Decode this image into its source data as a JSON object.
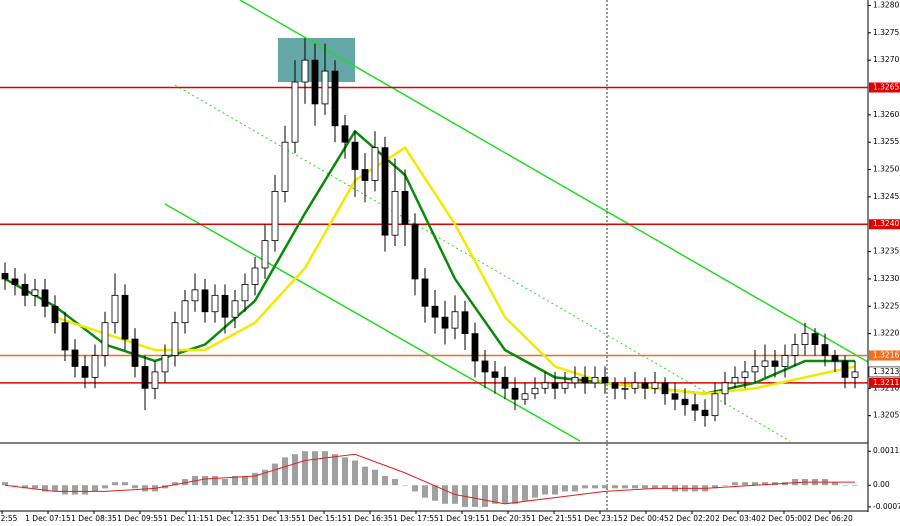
{
  "chart_data": [
    {
      "type": "candlestick",
      "ylim": [
        1.32,
        1.3281
      ],
      "yticks": [
        {
          "value": 1.3205,
          "label": "1.3205"
        },
        {
          "value": 1.321,
          "label": "1.3210"
        },
        {
          "value": 1.322,
          "label": "1.3220"
        },
        {
          "value": 1.3225,
          "label": "1.3225"
        },
        {
          "value": 1.323,
          "label": "1.3230"
        },
        {
          "value": 1.3235,
          "label": "1.3235"
        },
        {
          "value": 1.3245,
          "label": "1.3245"
        },
        {
          "value": 1.325,
          "label": "1.3250"
        },
        {
          "value": 1.3255,
          "label": "1.3255"
        },
        {
          "value": 1.326,
          "label": "1.3260"
        },
        {
          "value": 1.327,
          "label": "1.3270"
        },
        {
          "value": 1.3275,
          "label": "1.3275"
        },
        {
          "value": 1.328,
          "label": "1.3280"
        }
      ],
      "xtick_labels": [
        "2:55",
        "1 Dec 07:15",
        "1 Dec 08:35",
        "1 Dec 09:55",
        "1 Dec 11:15",
        "1 Dec 12:35",
        "1 Dec 13:55",
        "1 Dec 15:15",
        "1 Dec 16:35",
        "1 Dec 17:55",
        "1 Dec 19:15",
        "1 Dec 20:35",
        "1 Dec 21:55",
        "1 Dec 23:15",
        "2 Dec 00:45",
        "2 Dec 02:20",
        "2 Dec 03:40",
        "2 Dec 05:00",
        "2 Dec 06:20"
      ],
      "levels": [
        {
          "value": 1.3265,
          "label": "1.3265",
          "color": "#e00000"
        },
        {
          "value": 1.324,
          "label": "1.3240",
          "color": "#e00000"
        },
        {
          "value": 1.3216,
          "label": "1.3216",
          "color": "#f07020"
        },
        {
          "value": 1.3211,
          "label": "1.3211",
          "color": "#e00000"
        }
      ],
      "current": {
        "value": 1.3213,
        "label": "1.3213"
      },
      "ohlc": [
        [
          1.3231,
          1.3233,
          1.3228,
          1.323
        ],
        [
          1.323,
          1.3232,
          1.3227,
          1.3229
        ],
        [
          1.3229,
          1.3231,
          1.3225,
          1.3227
        ],
        [
          1.3227,
          1.323,
          1.3225,
          1.3228
        ],
        [
          1.3228,
          1.323,
          1.3223,
          1.3225
        ],
        [
          1.3225,
          1.3227,
          1.322,
          1.3222
        ],
        [
          1.3222,
          1.3224,
          1.3215,
          1.3217
        ],
        [
          1.3217,
          1.3219,
          1.3212,
          1.3214
        ],
        [
          1.3214,
          1.3216,
          1.321,
          1.3212
        ],
        [
          1.3212,
          1.3218,
          1.321,
          1.3216
        ],
        [
          1.3216,
          1.3224,
          1.3214,
          1.3222
        ],
        [
          1.3222,
          1.3231,
          1.322,
          1.3227
        ],
        [
          1.3227,
          1.3229,
          1.3217,
          1.3219
        ],
        [
          1.3219,
          1.3221,
          1.3212,
          1.3214
        ],
        [
          1.3214,
          1.3216,
          1.3206,
          1.321
        ],
        [
          1.321,
          1.3215,
          1.3208,
          1.3213
        ],
        [
          1.3213,
          1.3218,
          1.3211,
          1.3216
        ],
        [
          1.3216,
          1.3224,
          1.3214,
          1.3222
        ],
        [
          1.3222,
          1.3228,
          1.322,
          1.3226
        ],
        [
          1.3226,
          1.3231,
          1.3224,
          1.3228
        ],
        [
          1.3228,
          1.323,
          1.3222,
          1.3224
        ],
        [
          1.3224,
          1.3229,
          1.3222,
          1.3227
        ],
        [
          1.3227,
          1.3229,
          1.322,
          1.3223
        ],
        [
          1.3223,
          1.3228,
          1.3221,
          1.3226
        ],
        [
          1.3226,
          1.3231,
          1.3224,
          1.3229
        ],
        [
          1.3229,
          1.3234,
          1.3227,
          1.3232
        ],
        [
          1.3232,
          1.324,
          1.323,
          1.3237
        ],
        [
          1.3237,
          1.3249,
          1.3235,
          1.3246
        ],
        [
          1.3246,
          1.3258,
          1.3244,
          1.3255
        ],
        [
          1.3255,
          1.327,
          1.3253,
          1.3266
        ],
        [
          1.3266,
          1.3274,
          1.3262,
          1.327
        ],
        [
          1.327,
          1.3273,
          1.3258,
          1.3262
        ],
        [
          1.3262,
          1.3273,
          1.326,
          1.3268
        ],
        [
          1.3268,
          1.327,
          1.3255,
          1.3258
        ],
        [
          1.3258,
          1.326,
          1.3252,
          1.3255
        ],
        [
          1.3255,
          1.3257,
          1.3245,
          1.325
        ],
        [
          1.325,
          1.3253,
          1.3244,
          1.3248
        ],
        [
          1.3248,
          1.3257,
          1.3246,
          1.3254
        ],
        [
          1.3254,
          1.3256,
          1.3235,
          1.3238
        ],
        [
          1.3238,
          1.3252,
          1.3236,
          1.3246
        ],
        [
          1.3246,
          1.325,
          1.3236,
          1.324
        ],
        [
          1.324,
          1.3242,
          1.3227,
          1.323
        ],
        [
          1.323,
          1.3232,
          1.3222,
          1.3225
        ],
        [
          1.3225,
          1.3228,
          1.322,
          1.3223
        ],
        [
          1.3223,
          1.3226,
          1.3218,
          1.3221
        ],
        [
          1.3221,
          1.3227,
          1.3219,
          1.3224
        ],
        [
          1.3224,
          1.3226,
          1.3217,
          1.322
        ],
        [
          1.322,
          1.3222,
          1.3212,
          1.3215
        ],
        [
          1.3215,
          1.3217,
          1.321,
          1.3213
        ],
        [
          1.3213,
          1.3215,
          1.3209,
          1.3212
        ],
        [
          1.3212,
          1.3214,
          1.3208,
          1.321
        ],
        [
          1.321,
          1.3212,
          1.3206,
          1.3208
        ],
        [
          1.3208,
          1.3211,
          1.3207,
          1.3209
        ],
        [
          1.3209,
          1.3212,
          1.3208,
          1.321
        ],
        [
          1.321,
          1.3213,
          1.3209,
          1.3211
        ],
        [
          1.3211,
          1.3213,
          1.3208,
          1.321
        ],
        [
          1.321,
          1.3213,
          1.3209,
          1.3211
        ],
        [
          1.3211,
          1.3214,
          1.321,
          1.3212
        ],
        [
          1.3212,
          1.3214,
          1.3209,
          1.3211
        ],
        [
          1.3211,
          1.3214,
          1.321,
          1.3212
        ],
        [
          1.3212,
          1.3214,
          1.3209,
          1.3211
        ],
        [
          1.3211,
          1.3212,
          1.3208,
          1.321
        ],
        [
          1.321,
          1.3212,
          1.3208,
          1.321
        ],
        [
          1.321,
          1.3213,
          1.3209,
          1.3211
        ],
        [
          1.3211,
          1.3212,
          1.3208,
          1.321
        ],
        [
          1.321,
          1.3213,
          1.3209,
          1.3211
        ],
        [
          1.3211,
          1.3212,
          1.3207,
          1.3209
        ],
        [
          1.3209,
          1.3211,
          1.3206,
          1.3208
        ],
        [
          1.3208,
          1.321,
          1.3205,
          1.3207
        ],
        [
          1.3207,
          1.3209,
          1.3204,
          1.3206
        ],
        [
          1.3206,
          1.3208,
          1.3203,
          1.3205
        ],
        [
          1.3205,
          1.3211,
          1.3204,
          1.3209
        ],
        [
          1.3209,
          1.3213,
          1.3207,
          1.3211
        ],
        [
          1.3211,
          1.3214,
          1.321,
          1.3212
        ],
        [
          1.3212,
          1.3215,
          1.321,
          1.3213
        ],
        [
          1.3213,
          1.3217,
          1.3211,
          1.3214
        ],
        [
          1.3214,
          1.3218,
          1.3212,
          1.3215
        ],
        [
          1.3215,
          1.3217,
          1.3212,
          1.3214
        ],
        [
          1.3214,
          1.3218,
          1.3212,
          1.3216
        ],
        [
          1.3216,
          1.322,
          1.3214,
          1.3218
        ],
        [
          1.3218,
          1.3222,
          1.3216,
          1.322
        ],
        [
          1.322,
          1.3221,
          1.3216,
          1.3218
        ],
        [
          1.3218,
          1.322,
          1.3214,
          1.3216
        ],
        [
          1.3216,
          1.3217,
          1.3213,
          1.3215
        ],
        [
          1.3215,
          1.3216,
          1.321,
          1.3212
        ],
        [
          1.3212,
          1.3215,
          1.321,
          1.3213
        ]
      ],
      "ma_x": [
        0,
        5,
        10,
        15,
        20,
        25,
        30,
        35,
        40,
        45,
        50,
        55,
        60,
        65,
        70,
        75,
        80,
        85
      ],
      "moving_averages": [
        {
          "color": "#0a8a0a",
          "values": [
            1.323,
            1.3225,
            1.3218,
            1.3215,
            1.3218,
            1.3226,
            1.3242,
            1.3257,
            1.3249,
            1.323,
            1.3217,
            1.3212,
            1.3211,
            1.321,
            1.3209,
            1.3211,
            1.3215,
            1.3215
          ]
        },
        {
          "color": "#f2ea00",
          "values": [
            null,
            1.3223,
            1.322,
            1.3217,
            1.3217,
            1.3222,
            1.3232,
            1.3248,
            1.3254,
            1.324,
            1.3223,
            1.3214,
            1.3211,
            1.321,
            1.3209,
            1.321,
            1.3212,
            1.3214
          ]
        }
      ]
    },
    {
      "type": "macd",
      "ylim": [
        -0.0008,
        0.0013
      ],
      "yticks": [
        0.0011,
        {
          "value": 0,
          "label": "0.00"
        },
        -0.0007
      ],
      "color": "#a0a0a0",
      "values": [
        0.0001,
        0,
        -0.0001,
        -0.0001,
        -0.0002,
        -0.0002,
        -0.0003,
        -0.0003,
        -0.0003,
        -0.0002,
        -0.0001,
        0.0001,
        0.0001,
        -0.0001,
        -0.0002,
        -0.0002,
        -0.0001,
        0.0001,
        0.0002,
        0.0003,
        0.0003,
        0.0003,
        0.0002,
        0.0003,
        0.0003,
        0.0004,
        0.0005,
        0.0007,
        0.0009,
        0.001,
        0.0011,
        0.0011,
        0.0011,
        0.001,
        0.0009,
        0.0008,
        0.0006,
        0.0005,
        0.0003,
        0.0002,
        0,
        -0.0002,
        -0.0004,
        -0.0005,
        -0.0006,
        -0.0006,
        -0.0007,
        -0.0007,
        -0.0007,
        -0.0006,
        -0.0006,
        -0.0006,
        -0.0005,
        -0.0004,
        -0.0003,
        -0.0003,
        -0.0002,
        -0.0002,
        -0.0001,
        -0.0001,
        -0.0001,
        -0.0001,
        -0.0001,
        -0.0001,
        -0.0001,
        -0.0001,
        -0.0001,
        -0.0002,
        -0.0002,
        -0.0002,
        -0.0002,
        -0.0001,
        0,
        0.0001,
        0.0001,
        0.0001,
        0.0001,
        0.0001,
        0.0001,
        0.0002,
        0.0002,
        0.0002,
        0.0002,
        0.0001,
        0,
        0
      ],
      "signal_x": [
        0,
        5,
        10,
        15,
        20,
        25,
        30,
        35,
        40,
        45,
        50,
        55,
        60,
        65,
        70,
        75,
        80,
        85
      ],
      "signal": {
        "color": "#e02020",
        "values": [
          0,
          -0.0002,
          -0.0002,
          -0.0001,
          0.0002,
          0.0003,
          0.0008,
          0.001,
          0.0004,
          -0.0003,
          -0.0006,
          -0.0004,
          -0.0002,
          -0.0001,
          -0.0001,
          0,
          0.0001,
          0.0001
        ]
      }
    }
  ]
}
